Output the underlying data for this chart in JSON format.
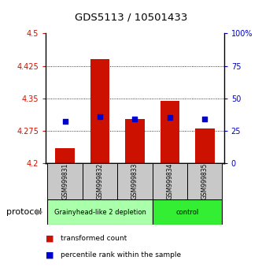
{
  "title": "GDS5113 / 10501433",
  "samples": [
    "GSM999831",
    "GSM999832",
    "GSM999833",
    "GSM999834",
    "GSM999835"
  ],
  "transformed_counts": [
    4.235,
    4.44,
    4.302,
    4.345,
    4.281
  ],
  "percentile_ranks": [
    32,
    36,
    34,
    35,
    34
  ],
  "ylim_left": [
    4.2,
    4.5
  ],
  "ylim_right": [
    0,
    100
  ],
  "yticks_left": [
    4.2,
    4.275,
    4.35,
    4.425,
    4.5
  ],
  "ytick_labels_left": [
    "4.2",
    "4.275",
    "4.35",
    "4.425",
    "4.5"
  ],
  "yticks_right": [
    0,
    25,
    50,
    75,
    100
  ],
  "ytick_labels_right": [
    "0",
    "25",
    "50",
    "75",
    "100%"
  ],
  "bar_color": "#cc1100",
  "dot_color": "#0000cc",
  "grid_color": "#000000",
  "bar_bottom": 4.2,
  "groups": [
    {
      "label": "Grainyhead-like 2 depletion",
      "samples": [
        0,
        1,
        2
      ],
      "color": "#aaffaa"
    },
    {
      "label": "control",
      "samples": [
        3,
        4
      ],
      "color": "#33ee33"
    }
  ],
  "protocol_label": "protocol",
  "legend_items": [
    {
      "color": "#cc1100",
      "label": "transformed count"
    },
    {
      "color": "#0000cc",
      "label": "percentile rank within the sample"
    }
  ],
  "bg_color": "#ffffff",
  "tick_label_color_left": "#cc1100",
  "tick_label_color_right": "#0000cc",
  "label_box_color": "#c8c8c8",
  "arrow_color": "#888888"
}
